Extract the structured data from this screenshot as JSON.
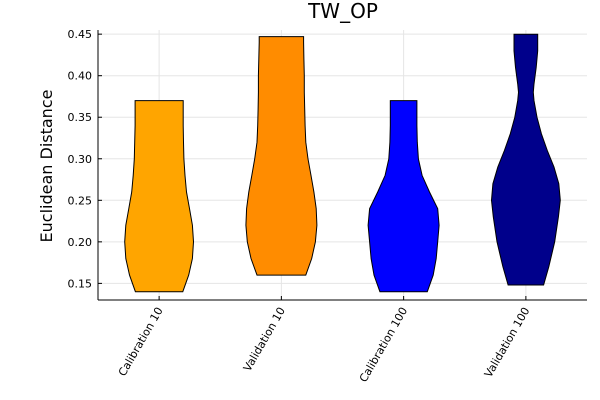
{
  "chart_data": {
    "type": "violin",
    "title": "TW_OP",
    "xlabel": "",
    "ylabel": "Euclidean Distance",
    "ylim": [
      0.13,
      0.455
    ],
    "yticks": [
      0.15,
      0.2,
      0.25,
      0.3,
      0.35,
      0.4,
      0.45
    ],
    "ytick_labels": [
      "0.15",
      "0.20",
      "0.25",
      "0.30",
      "0.35",
      "0.40",
      "0.45"
    ],
    "grid": true,
    "legend": "none",
    "categories": [
      "Calibration 10",
      "Validation 10",
      "Calibration 100",
      "Validation 100"
    ],
    "series": [
      {
        "category": "Calibration 10",
        "color": "#FFA500",
        "min": 0.14,
        "max": 0.37,
        "density": [
          [
            0.14,
            0.64
          ],
          [
            0.16,
            0.8
          ],
          [
            0.18,
            0.9
          ],
          [
            0.2,
            0.93
          ],
          [
            0.22,
            0.9
          ],
          [
            0.24,
            0.82
          ],
          [
            0.26,
            0.74
          ],
          [
            0.28,
            0.7
          ],
          [
            0.3,
            0.67
          ],
          [
            0.32,
            0.66
          ],
          [
            0.34,
            0.65
          ],
          [
            0.36,
            0.65
          ],
          [
            0.37,
            0.65
          ]
        ]
      },
      {
        "category": "Validation 10",
        "color": "#FF8C00",
        "min": 0.16,
        "max": 0.447,
        "density": [
          [
            0.16,
            0.66
          ],
          [
            0.18,
            0.82
          ],
          [
            0.2,
            0.92
          ],
          [
            0.22,
            0.96
          ],
          [
            0.24,
            0.94
          ],
          [
            0.26,
            0.88
          ],
          [
            0.28,
            0.8
          ],
          [
            0.3,
            0.72
          ],
          [
            0.32,
            0.66
          ],
          [
            0.34,
            0.64
          ],
          [
            0.36,
            0.63
          ],
          [
            0.38,
            0.62
          ],
          [
            0.4,
            0.62
          ],
          [
            0.42,
            0.61
          ],
          [
            0.44,
            0.6
          ],
          [
            0.447,
            0.6
          ]
        ]
      },
      {
        "category": "Calibration 100",
        "color": "#0000FF",
        "min": 0.14,
        "max": 0.37,
        "density": [
          [
            0.14,
            0.64
          ],
          [
            0.16,
            0.8
          ],
          [
            0.18,
            0.88
          ],
          [
            0.2,
            0.92
          ],
          [
            0.22,
            0.96
          ],
          [
            0.24,
            0.92
          ],
          [
            0.26,
            0.7
          ],
          [
            0.28,
            0.5
          ],
          [
            0.3,
            0.4
          ],
          [
            0.32,
            0.37
          ],
          [
            0.34,
            0.36
          ],
          [
            0.36,
            0.36
          ],
          [
            0.37,
            0.36
          ]
        ]
      },
      {
        "category": "Validation 100",
        "color": "#00008B",
        "min": 0.148,
        "max": 0.45,
        "density": [
          [
            0.148,
            0.48
          ],
          [
            0.17,
            0.62
          ],
          [
            0.2,
            0.78
          ],
          [
            0.23,
            0.88
          ],
          [
            0.25,
            0.93
          ],
          [
            0.27,
            0.89
          ],
          [
            0.29,
            0.76
          ],
          [
            0.31,
            0.58
          ],
          [
            0.33,
            0.42
          ],
          [
            0.35,
            0.3
          ],
          [
            0.37,
            0.22
          ],
          [
            0.38,
            0.2
          ],
          [
            0.39,
            0.22
          ],
          [
            0.41,
            0.28
          ],
          [
            0.43,
            0.32
          ],
          [
            0.45,
            0.32
          ]
        ]
      }
    ]
  }
}
